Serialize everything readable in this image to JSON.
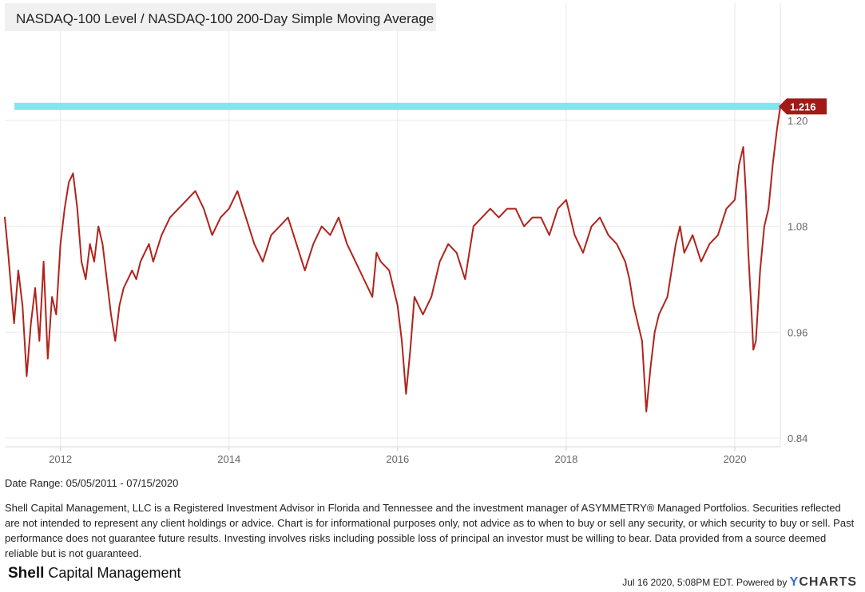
{
  "title": "NASDAQ-100 Level / NASDAQ-100 200-Day Simple Moving Average",
  "date_range": "Date Range: 05/05/2011 - 07/15/2020",
  "disclaimer": "Shell Capital Management, LLC is a Registered Investment Advisor in Florida and Tennessee and the investment manager of ASYMMETRY® Managed Portfolios. Securities reflected are not intended to represent any client holdings or advice. Chart is for informational purposes only, not advice as to when to buy or sell any security, or which security to buy or sell. Past performance does not guarantee future results. Investing involves risks including possible loss of principal an investor must be willing to bear. Data provided from a source deemed reliable but is not guaranteed.",
  "brand": {
    "bold": "Shell",
    "rest": " Capital Management"
  },
  "footer": {
    "timestamp": "Jul 16 2020, 5:08PM EDT. Powered by ",
    "ycharts_y": "Y",
    "ycharts_rest": "CHARTS"
  },
  "colors": {
    "series": "#b0231c",
    "reference_line": "#7fe8ee",
    "grid": "#e9e9e9",
    "axis_text": "#666666",
    "callout": "#a11a17"
  },
  "chart_data": {
    "type": "line",
    "title": "NASDAQ-100 Level / NASDAQ-100 200-Day Simple Moving Average",
    "xlabel": "",
    "ylabel": "",
    "xlim": [
      2011.34,
      2020.54
    ],
    "ylim": [
      0.83,
      1.333
    ],
    "x_ticks": [
      2012,
      2014,
      2016,
      2018,
      2020
    ],
    "x_tick_labels": [
      "2012",
      "2014",
      "2016",
      "2018",
      "2020"
    ],
    "y_ticks": [
      0.84,
      0.96,
      1.08,
      1.2
    ],
    "y_tick_labels": [
      "0.84",
      "0.96",
      "1.08",
      "1.20"
    ],
    "reference_line": {
      "value": 1.216,
      "label": "1.216"
    },
    "last_value_label": "1.216",
    "series": [
      {
        "name": "NASDAQ-100 Level / NASDAQ-100 200-Day Simple Moving Average",
        "x": [
          2011.34,
          2011.38,
          2011.45,
          2011.5,
          2011.55,
          2011.6,
          2011.65,
          2011.7,
          2011.75,
          2011.8,
          2011.85,
          2011.9,
          2011.95,
          2012.0,
          2012.05,
          2012.1,
          2012.15,
          2012.2,
          2012.25,
          2012.3,
          2012.35,
          2012.4,
          2012.45,
          2012.5,
          2012.55,
          2012.6,
          2012.65,
          2012.7,
          2012.75,
          2012.8,
          2012.85,
          2012.9,
          2012.95,
          2013.0,
          2013.05,
          2013.1,
          2013.2,
          2013.3,
          2013.4,
          2013.5,
          2013.6,
          2013.7,
          2013.8,
          2013.9,
          2014.0,
          2014.1,
          2014.2,
          2014.3,
          2014.4,
          2014.5,
          2014.6,
          2014.7,
          2014.8,
          2014.9,
          2015.0,
          2015.1,
          2015.2,
          2015.3,
          2015.4,
          2015.5,
          2015.6,
          2015.7,
          2015.75,
          2015.8,
          2015.9,
          2016.0,
          2016.05,
          2016.1,
          2016.15,
          2016.2,
          2016.3,
          2016.4,
          2016.5,
          2016.6,
          2016.7,
          2016.8,
          2016.9,
          2017.0,
          2017.1,
          2017.2,
          2017.3,
          2017.4,
          2017.5,
          2017.6,
          2017.7,
          2017.8,
          2017.9,
          2018.0,
          2018.05,
          2018.1,
          2018.2,
          2018.3,
          2018.4,
          2018.5,
          2018.6,
          2018.7,
          2018.75,
          2018.8,
          2018.85,
          2018.9,
          2018.95,
          2019.0,
          2019.05,
          2019.1,
          2019.2,
          2019.3,
          2019.35,
          2019.4,
          2019.5,
          2019.6,
          2019.7,
          2019.8,
          2019.9,
          2020.0,
          2020.05,
          2020.1,
          2020.13,
          2020.16,
          2020.2,
          2020.22,
          2020.25,
          2020.3,
          2020.35,
          2020.4,
          2020.45,
          2020.5,
          2020.54
        ],
        "values": [
          1.09,
          1.05,
          0.97,
          1.03,
          0.99,
          0.91,
          0.97,
          1.01,
          0.95,
          1.04,
          0.93,
          1.0,
          0.98,
          1.06,
          1.1,
          1.13,
          1.14,
          1.1,
          1.04,
          1.02,
          1.06,
          1.04,
          1.08,
          1.06,
          1.02,
          0.98,
          0.95,
          0.99,
          1.01,
          1.02,
          1.03,
          1.02,
          1.04,
          1.05,
          1.06,
          1.04,
          1.07,
          1.09,
          1.1,
          1.11,
          1.12,
          1.1,
          1.07,
          1.09,
          1.1,
          1.12,
          1.09,
          1.06,
          1.04,
          1.07,
          1.08,
          1.09,
          1.06,
          1.03,
          1.06,
          1.08,
          1.07,
          1.09,
          1.06,
          1.04,
          1.02,
          1.0,
          1.05,
          1.04,
          1.03,
          0.99,
          0.95,
          0.89,
          0.94,
          1.0,
          0.98,
          1.0,
          1.04,
          1.06,
          1.05,
          1.02,
          1.08,
          1.09,
          1.1,
          1.09,
          1.1,
          1.1,
          1.08,
          1.09,
          1.09,
          1.07,
          1.1,
          1.11,
          1.09,
          1.07,
          1.05,
          1.08,
          1.09,
          1.07,
          1.06,
          1.04,
          1.02,
          0.99,
          0.97,
          0.95,
          0.87,
          0.92,
          0.96,
          0.98,
          1.0,
          1.06,
          1.08,
          1.05,
          1.07,
          1.04,
          1.06,
          1.07,
          1.1,
          1.11,
          1.15,
          1.17,
          1.12,
          1.05,
          0.98,
          0.94,
          0.95,
          1.03,
          1.08,
          1.1,
          1.15,
          1.19,
          1.216
        ]
      }
    ]
  }
}
